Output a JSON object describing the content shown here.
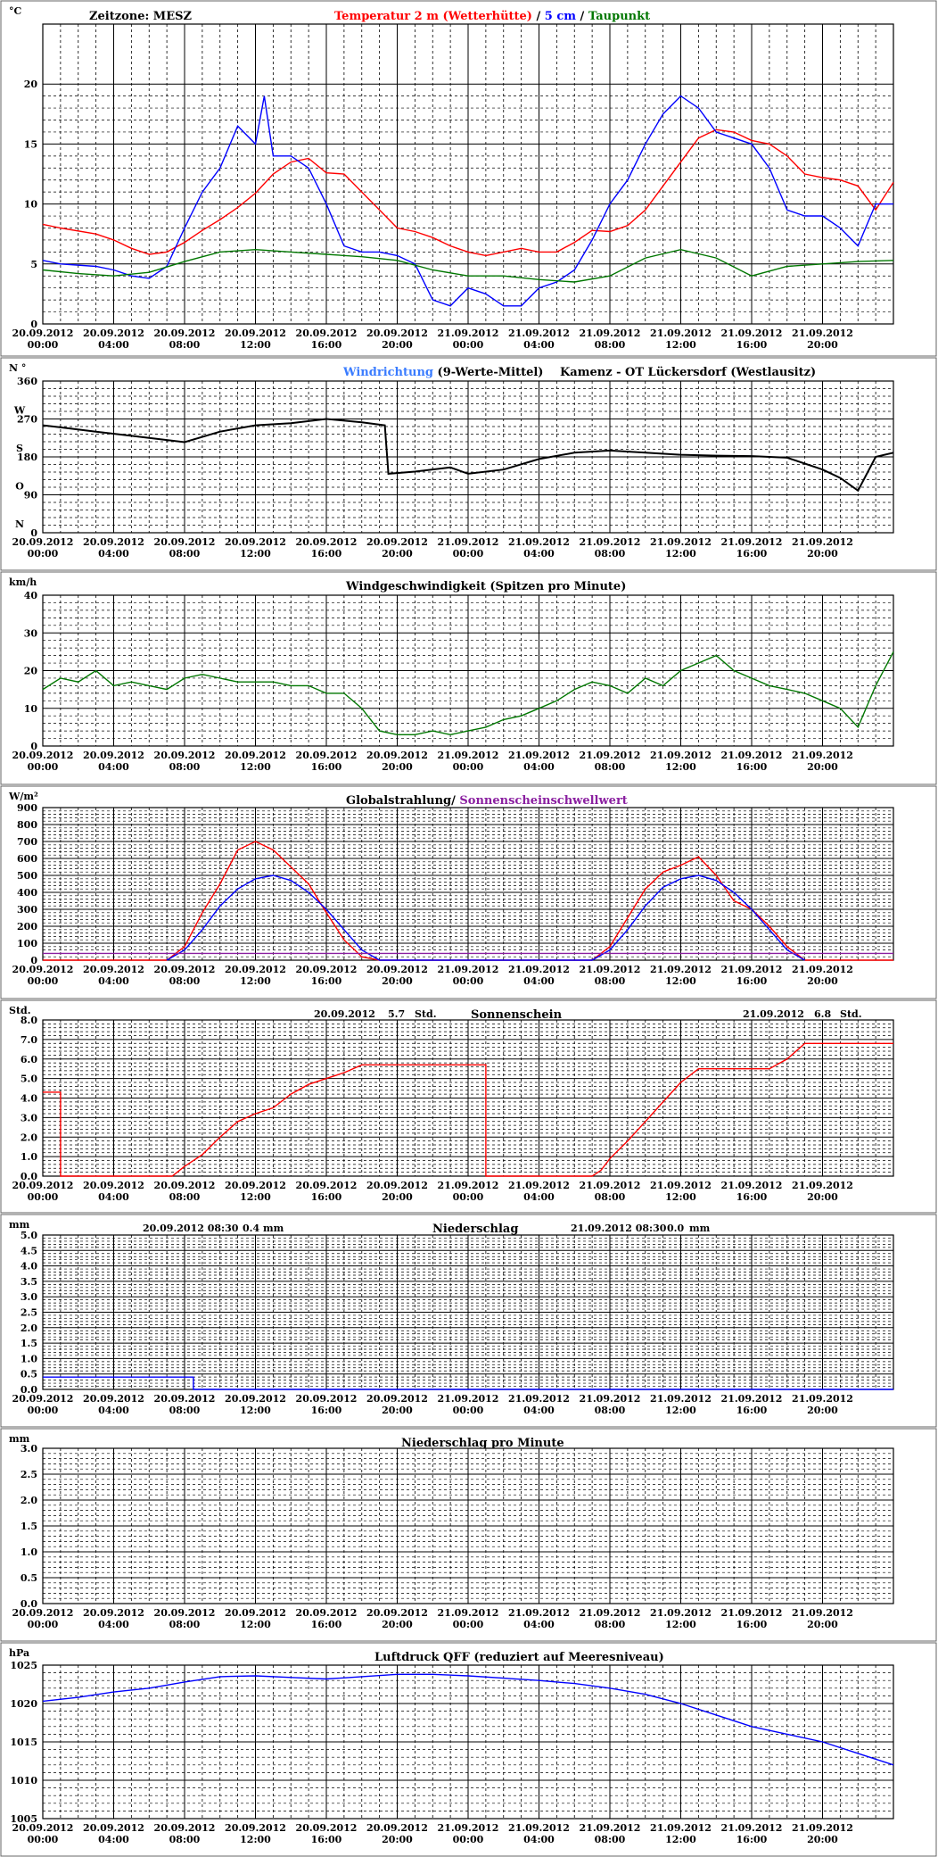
{
  "x_tick_labels": [
    [
      "20.09.2012",
      "00:00"
    ],
    [
      "20.09.2012",
      "04:00"
    ],
    [
      "20.09.2012",
      "08:00"
    ],
    [
      "20.09.2012",
      "12:00"
    ],
    [
      "20.09.2012",
      "16:00"
    ],
    [
      "20.09.2012",
      "20:00"
    ],
    [
      "21.09.2012",
      "00:00"
    ],
    [
      "21.09.2012",
      "04:00"
    ],
    [
      "21.09.2012",
      "08:00"
    ],
    [
      "21.09.2012",
      "12:00"
    ],
    [
      "21.09.2012",
      "16:00"
    ],
    [
      "21.09.2012",
      "20:00"
    ]
  ],
  "colors": {
    "red": "#ff0000",
    "blue": "#0000ff",
    "lightblue": "#3a7cff",
    "green": "#007700",
    "black": "#000000",
    "purple": "#8a1fa0",
    "dark_red": "#cc0000"
  },
  "chart_data": [
    {
      "id": "temperature",
      "type": "line",
      "title_parts": [
        {
          "text": "Temperatur 2 m (Wetterhütte)",
          "color": "red"
        },
        {
          "text": "  /  ",
          "color": "black"
        },
        {
          "text": "5 cm",
          "color": "blue"
        },
        {
          "text": " / ",
          "color": "black"
        },
        {
          "text": "Taupunkt",
          "color": "green"
        }
      ],
      "top_left_text": "Zeitzone: MESZ",
      "unit": "°C",
      "ylim": [
        0,
        25
      ],
      "y_ticks": [
        0,
        5,
        10,
        15,
        20
      ],
      "y_tick_labels": [
        "0",
        "5",
        "10",
        "15",
        "20"
      ],
      "series": [
        {
          "name": "Temperatur 2 m (Wetterhütte)",
          "color": "red",
          "x": [
            0,
            1,
            3,
            4,
            5,
            6,
            7,
            8,
            9,
            10,
            11,
            12,
            13,
            14,
            15,
            16,
            17,
            18,
            19,
            20,
            21,
            22,
            23,
            24,
            25,
            26,
            27,
            28,
            29,
            30,
            31,
            32,
            33,
            34,
            35,
            36,
            37,
            38,
            39,
            40,
            41,
            42,
            43,
            44,
            45,
            46,
            47,
            48
          ],
          "y": [
            8.3,
            8.0,
            7.5,
            7.0,
            6.3,
            5.8,
            6.0,
            6.8,
            7.8,
            8.7,
            9.7,
            10.9,
            12.5,
            13.5,
            13.8,
            12.6,
            12.5,
            11.0,
            9.5,
            8.0,
            7.7,
            7.2,
            6.5,
            6.0,
            5.7,
            6.0,
            6.3,
            6.0,
            6.0,
            6.8,
            7.8,
            7.7,
            8.2,
            9.5,
            11.5,
            13.5,
            15.5,
            16.2,
            16.0,
            15.3,
            15.0,
            14.0,
            12.5,
            12.2,
            12.0,
            11.5,
            9.5,
            11.8
          ]
        },
        {
          "name": "5 cm",
          "color": "blue",
          "x": [
            0,
            1,
            3,
            4,
            5,
            6,
            7,
            8,
            9,
            10,
            11,
            12,
            12.5,
            13,
            14,
            15,
            16,
            17,
            18,
            19,
            20,
            21,
            22,
            23,
            24,
            25,
            26,
            27,
            28,
            29,
            30,
            31,
            32,
            33,
            34,
            35,
            36,
            37,
            38,
            39,
            40,
            41,
            42,
            43,
            44,
            45,
            46,
            47,
            48
          ],
          "y": [
            5.3,
            5.0,
            4.8,
            4.5,
            4.0,
            3.8,
            4.8,
            8.0,
            11.0,
            13.0,
            16.5,
            15.0,
            19.0,
            14.0,
            14.0,
            13.0,
            10.0,
            6.5,
            6.0,
            6.0,
            5.7,
            5.0,
            2.0,
            1.5,
            3.0,
            2.5,
            1.5,
            1.5,
            3.0,
            3.5,
            4.5,
            7.0,
            10.0,
            12.0,
            15.0,
            17.5,
            19.0,
            18.0,
            16.0,
            15.5,
            15.0,
            13.0,
            9.5,
            9.0,
            9.0,
            8.0,
            6.5,
            10.0,
            10.0
          ]
        },
        {
          "name": "Taupunkt",
          "color": "green",
          "x": [
            0,
            2,
            4,
            6,
            8,
            10,
            12,
            14,
            16,
            18,
            20,
            22,
            24,
            26,
            28,
            30,
            32,
            34,
            36,
            38,
            40,
            42,
            44,
            46,
            48
          ],
          "y": [
            4.5,
            4.2,
            4.0,
            4.3,
            5.2,
            6.0,
            6.2,
            6.0,
            5.8,
            5.6,
            5.3,
            4.5,
            4.0,
            4.0,
            3.7,
            3.5,
            4.0,
            5.5,
            6.2,
            5.5,
            4.0,
            4.8,
            5.0,
            5.2,
            5.3
          ]
        }
      ]
    },
    {
      "id": "wind_direction",
      "type": "line",
      "title_parts": [
        {
          "text": "Windrichtung",
          "color": "lightblue"
        },
        {
          "text": " (9-Werte-Mittel)",
          "color": "black"
        }
      ],
      "title2": "Kamenz - OT Lückersdorf (Westlausitz)",
      "unit": "N °",
      "ylim": [
        0,
        360
      ],
      "y_ticks": [
        0,
        90,
        180,
        270,
        360
      ],
      "y_tick_labels": [
        "0",
        "90",
        "180",
        "270",
        "360"
      ],
      "compass_labels": [
        {
          "text": "W",
          "value": 270
        },
        {
          "text": "S",
          "value": 180
        },
        {
          "text": "O",
          "value": 90
        },
        {
          "text": "N",
          "value": 0
        }
      ],
      "series": [
        {
          "name": "Windrichtung",
          "color": "lightblue",
          "x": [
            0,
            1,
            3,
            5,
            6,
            8,
            10,
            12,
            14,
            16,
            18,
            19.3,
            19.5,
            21,
            23,
            24,
            26,
            28,
            30,
            32,
            34,
            36,
            38,
            40,
            42,
            44,
            45,
            46,
            47,
            48
          ],
          "y": [
            255,
            250,
            240,
            230,
            225,
            215,
            240,
            255,
            260,
            270,
            262,
            255,
            140,
            145,
            155,
            140,
            150,
            175,
            190,
            195,
            190,
            185,
            183,
            182,
            178,
            150,
            130,
            100,
            180,
            190
          ]
        },
        {
          "name": "9-Werte-Mittel",
          "color": "black",
          "x": [
            0,
            1,
            3,
            5,
            6,
            8,
            10,
            12,
            14,
            16,
            18,
            19.3,
            19.5,
            21,
            23,
            24,
            26,
            28,
            30,
            32,
            34,
            36,
            38,
            40,
            42,
            44,
            45,
            46,
            47,
            48
          ],
          "y": [
            255,
            250,
            240,
            230,
            225,
            215,
            240,
            255,
            260,
            270,
            262,
            255,
            140,
            145,
            155,
            140,
            150,
            175,
            190,
            195,
            190,
            185,
            183,
            182,
            178,
            150,
            130,
            100,
            180,
            190
          ]
        }
      ]
    },
    {
      "id": "wind_speed",
      "type": "line",
      "title_parts": [
        {
          "text": "Windgeschwindigkeit (Spitzen pro Minute)",
          "color": "black"
        }
      ],
      "unit": "km/h",
      "ylim": [
        0,
        40
      ],
      "y_ticks": [
        0,
        10,
        20,
        30,
        40
      ],
      "y_tick_labels": [
        "0",
        "10",
        "20",
        "30",
        "40"
      ],
      "series": [
        {
          "name": "Windgeschwindigkeit",
          "color": "green",
          "x": [
            0,
            1,
            2,
            3,
            4,
            5,
            6,
            7,
            8,
            9,
            10,
            11,
            12,
            13,
            14,
            15,
            16,
            17,
            18,
            19,
            20,
            21,
            22,
            23,
            24,
            25,
            26,
            27,
            28,
            29,
            30,
            31,
            32,
            33,
            34,
            35,
            36,
            37,
            38,
            39,
            40,
            41,
            42,
            43,
            44,
            45,
            46,
            47,
            48
          ],
          "y": [
            15,
            18,
            17,
            20,
            16,
            17,
            16,
            15,
            18,
            19,
            18,
            17,
            17,
            17,
            16,
            16,
            14,
            14,
            10,
            4,
            3,
            3,
            4,
            3,
            4,
            5,
            7,
            8,
            10,
            12,
            15,
            17,
            16,
            14,
            18,
            16,
            20,
            22,
            24,
            20,
            18,
            16,
            15,
            14,
            12,
            10,
            5,
            16,
            25
          ]
        }
      ]
    },
    {
      "id": "global_radiation",
      "type": "line",
      "title_parts": [
        {
          "text": "Globalstrahlung/ ",
          "color": "black"
        },
        {
          "text": "Sonnenscheinschwellwert",
          "color": "purple"
        }
      ],
      "unit": "W/m²",
      "ylim": [
        0,
        900
      ],
      "y_ticks": [
        0,
        100,
        200,
        300,
        400,
        500,
        600,
        700,
        800,
        900
      ],
      "y_tick_labels": [
        "0",
        "100",
        "200",
        "300",
        "400",
        "500",
        "600",
        "700",
        "800",
        "900"
      ],
      "series": [
        {
          "name": "Globalstrahlung",
          "color": "red",
          "x": [
            0,
            7,
            8,
            9,
            10,
            11,
            12,
            13,
            14,
            15,
            16,
            17,
            18,
            19,
            31,
            32,
            33,
            34,
            35,
            36,
            37,
            38,
            39,
            40,
            41,
            42,
            43,
            48
          ],
          "y": [
            0,
            0,
            80,
            280,
            450,
            650,
            700,
            650,
            550,
            450,
            280,
            120,
            20,
            0,
            0,
            80,
            250,
            420,
            520,
            560,
            610,
            500,
            350,
            300,
            200,
            80,
            0,
            0
          ]
        },
        {
          "name": "Sonnenscheinschwellwert (Kurve)",
          "color": "blue",
          "x": [
            7,
            8,
            9,
            10,
            11,
            12,
            13,
            14,
            15,
            16,
            17,
            18,
            19,
            31,
            32,
            33,
            34,
            35,
            36,
            37,
            38,
            39,
            40,
            41,
            42,
            43
          ],
          "y": [
            0,
            60,
            180,
            320,
            420,
            480,
            500,
            470,
            400,
            300,
            180,
            60,
            0,
            0,
            60,
            180,
            320,
            430,
            480,
            500,
            470,
            400,
            300,
            180,
            60,
            0
          ]
        },
        {
          "name": "Sonnenscheinschwellwert",
          "color": "purple",
          "x": [
            0,
            48
          ],
          "y": [
            40,
            40
          ]
        }
      ]
    },
    {
      "id": "sunshine",
      "type": "line",
      "title_parts": [
        {
          "text": "Sonnenschein",
          "color": "black"
        }
      ],
      "annotations": [
        {
          "text": "20.09.2012"
        },
        {
          "text": "5.7"
        },
        {
          "text": "Std."
        },
        {
          "text": "21.09.2012"
        },
        {
          "text": "6.8"
        },
        {
          "text": "Std."
        }
      ],
      "unit": "Std.",
      "ylim": [
        0,
        8
      ],
      "y_ticks": [
        0,
        1,
        2,
        3,
        4,
        5,
        6,
        7,
        8
      ],
      "y_tick_labels": [
        "0.0",
        "1.0",
        "2.0",
        "3.0",
        "4.0",
        "5.0",
        "6.0",
        "7.0",
        "8.0"
      ],
      "series": [
        {
          "name": "Sonnenschein",
          "color": "red",
          "x": [
            0,
            1,
            1,
            7.3,
            8,
            9,
            10,
            11,
            12,
            13,
            14,
            15,
            16,
            17,
            18,
            18.5,
            19,
            25,
            25,
            31,
            31.5,
            32,
            33,
            34,
            35,
            36,
            37,
            38,
            39,
            40,
            41,
            42,
            43,
            44,
            48
          ],
          "y": [
            4.3,
            4.3,
            0,
            0,
            0.5,
            1.1,
            2.0,
            2.8,
            3.2,
            3.5,
            4.2,
            4.7,
            5.0,
            5.3,
            5.7,
            5.7,
            5.7,
            5.7,
            0,
            0,
            0.3,
            0.9,
            1.8,
            2.8,
            3.8,
            4.8,
            5.5,
            5.5,
            5.5,
            5.5,
            5.5,
            6.0,
            6.8,
            6.8,
            6.8
          ]
        }
      ]
    },
    {
      "id": "precipitation",
      "type": "line",
      "title_parts": [
        {
          "text": "Niederschlag",
          "color": "black"
        }
      ],
      "annotations": [
        {
          "text": "20.09.2012 08:30"
        },
        {
          "text": "0.4"
        },
        {
          "text": "mm"
        },
        {
          "text": "21.09.2012 08:30"
        },
        {
          "text": "0.0"
        },
        {
          "text": "mm"
        }
      ],
      "unit": "mm",
      "ylim": [
        0,
        5
      ],
      "y_ticks": [
        0,
        0.5,
        1,
        1.5,
        2,
        2.5,
        3,
        3.5,
        4,
        4.5,
        5
      ],
      "y_tick_labels": [
        "0.0",
        "0.5",
        "1.0",
        "1.5",
        "2.0",
        "2.5",
        "3.0",
        "3.5",
        "4.0",
        "4.5",
        "5.0"
      ],
      "series": [
        {
          "name": "Niederschlag",
          "color": "blue",
          "x": [
            0,
            8.5,
            8.5,
            48
          ],
          "y": [
            0.4,
            0.4,
            0,
            0
          ]
        }
      ]
    },
    {
      "id": "precip_minute",
      "type": "line",
      "title_parts": [
        {
          "text": "Niederschlag pro Minute",
          "color": "black"
        }
      ],
      "unit": "mm",
      "ylim": [
        0,
        3
      ],
      "y_ticks": [
        0,
        0.5,
        1,
        1.5,
        2,
        2.5,
        3
      ],
      "y_tick_labels": [
        "0.0",
        "0.5",
        "1.0",
        "1.5",
        "2.0",
        "2.5",
        "3.0"
      ],
      "series": []
    },
    {
      "id": "pressure",
      "type": "line",
      "title_parts": [
        {
          "text": "Luftdruck QFF (reduziert auf Meeresniveau)",
          "color": "black"
        }
      ],
      "unit": "hPa",
      "ylim": [
        1005,
        1025
      ],
      "y_ticks": [
        1005,
        1010,
        1015,
        1020,
        1025
      ],
      "y_tick_labels": [
        "1005",
        "1010",
        "1015",
        "1020",
        "1025"
      ],
      "series": [
        {
          "name": "Luftdruck QFF",
          "color": "blue",
          "x": [
            0,
            2,
            4,
            6,
            8,
            10,
            12,
            14,
            16,
            18,
            20,
            22,
            24,
            26,
            28,
            30,
            32,
            34,
            36,
            38,
            40,
            42,
            44,
            46,
            48
          ],
          "y": [
            1020.3,
            1020.8,
            1021.5,
            1022.0,
            1022.8,
            1023.5,
            1023.6,
            1023.4,
            1023.2,
            1023.5,
            1023.8,
            1023.8,
            1023.6,
            1023.3,
            1023.0,
            1022.6,
            1022.0,
            1021.2,
            1020.0,
            1018.5,
            1017.0,
            1016.0,
            1015.0,
            1013.5,
            1012.0
          ]
        }
      ]
    }
  ]
}
